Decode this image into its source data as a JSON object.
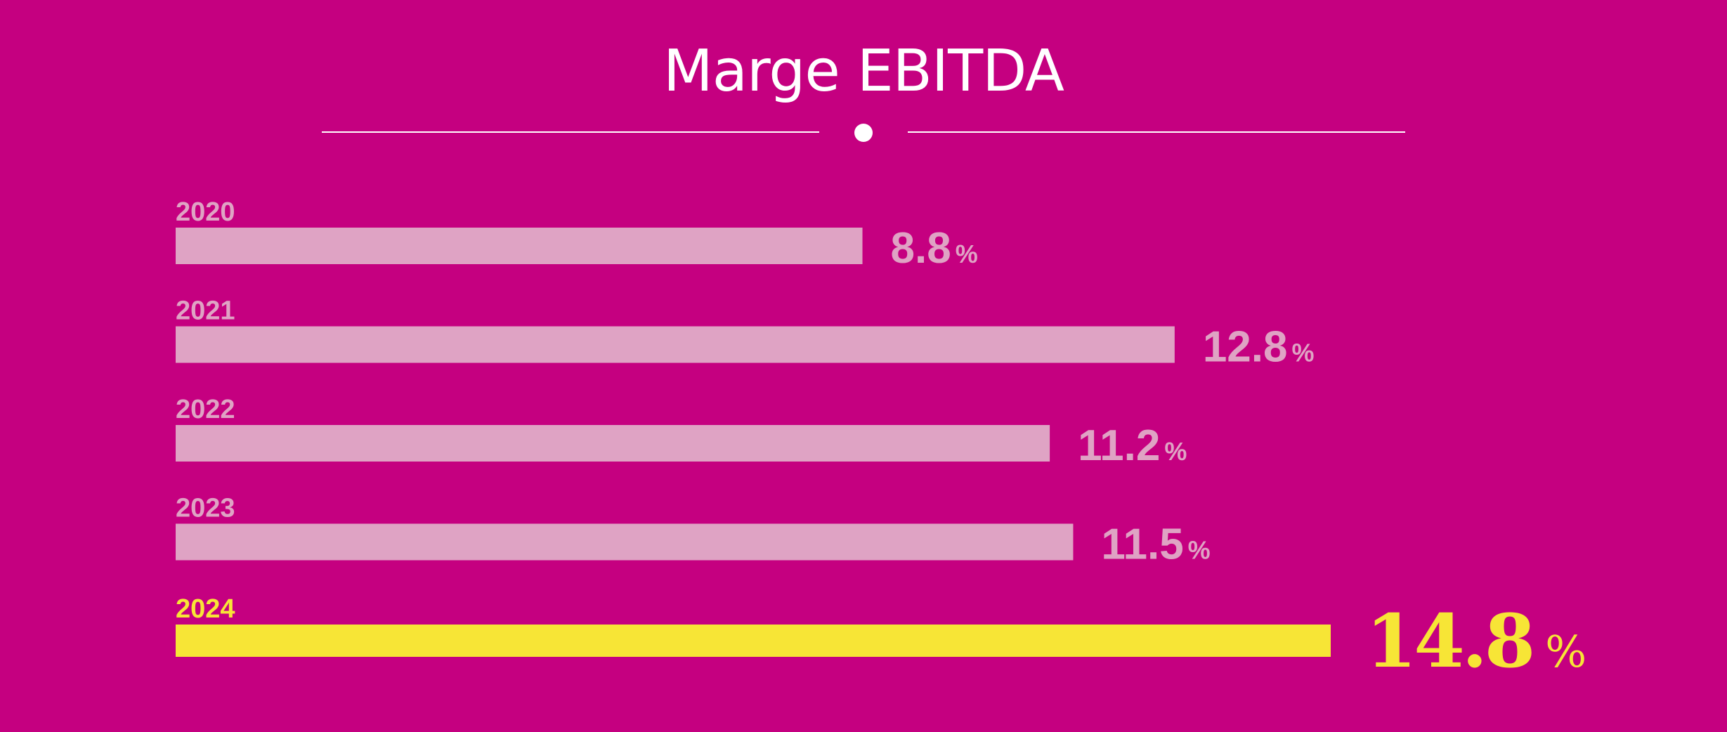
{
  "colors": {
    "background": "#C50080",
    "bar": "#DFA3C4",
    "highlight": "#F7E536",
    "title": "#FFFFFF"
  },
  "chart_data": {
    "type": "bar",
    "orientation": "horizontal",
    "title": "Marge EBITDA",
    "categories": [
      "2020",
      "2021",
      "2022",
      "2023",
      "2024"
    ],
    "values": [
      8.8,
      12.8,
      11.2,
      11.5,
      14.8
    ],
    "value_labels": [
      "8.8",
      "12.8",
      "11.2",
      "11.5",
      "14.8"
    ],
    "unit": "%",
    "highlight_category": "2024",
    "xlim": [
      0,
      14.8
    ],
    "grid": false,
    "legend": "none"
  }
}
